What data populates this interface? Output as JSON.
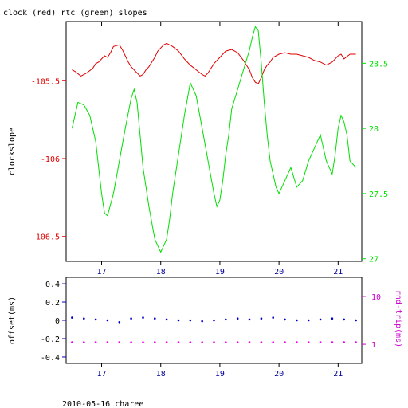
{
  "title": "clock (red) rtc (green) slopes",
  "footer": "2010-05-16 charee",
  "colors": {
    "clock": "#e00000",
    "rtc": "#00e000",
    "offset": "#0000cc",
    "rtrip": "#ee00ee",
    "axis": "#000000",
    "offset_ticks": "#0000cc",
    "rtrip_ticks": "#cc00cc"
  },
  "chart_data": [
    {
      "type": "line",
      "title": "clock (red) rtc (green) slopes",
      "xlabel": "",
      "ylabel": "clockslope",
      "y2label": "",
      "xlim": [
        16.4,
        21.4
      ],
      "ylim": [
        -106.66,
        -105.12
      ],
      "y2lim": [
        26.98,
        28.82
      ],
      "xticks": [
        17,
        18,
        19,
        20,
        21
      ],
      "yticks": [
        -105.5,
        -106,
        -106.5
      ],
      "y2ticks": [
        28.5,
        28,
        27.5,
        27
      ],
      "series": [
        {
          "name": "clock",
          "axis": "left",
          "x": [
            16.5,
            16.55,
            16.65,
            16.75,
            16.85,
            16.9,
            16.95,
            17.0,
            17.05,
            17.1,
            17.15,
            17.2,
            17.3,
            17.35,
            17.4,
            17.45,
            17.5,
            17.55,
            17.6,
            17.65,
            17.7,
            17.75,
            17.8,
            17.85,
            17.9,
            17.95,
            18.0,
            18.05,
            18.1,
            18.2,
            18.3,
            18.4,
            18.5,
            18.6,
            18.7,
            18.75,
            18.8,
            18.9,
            19.0,
            19.05,
            19.1,
            19.2,
            19.3,
            19.4,
            19.5,
            19.55,
            19.6,
            19.65,
            19.7,
            19.75,
            19.8,
            19.85,
            19.9,
            20.0,
            20.1,
            20.2,
            20.3,
            20.4,
            20.5,
            20.6,
            20.7,
            20.8,
            20.9,
            21.0,
            21.05,
            21.1,
            21.2,
            21.3
          ],
          "y": [
            -105.43,
            -105.44,
            -105.47,
            -105.45,
            -105.42,
            -105.39,
            -105.38,
            -105.36,
            -105.34,
            -105.35,
            -105.32,
            -105.28,
            -105.27,
            -105.3,
            -105.34,
            -105.38,
            -105.41,
            -105.43,
            -105.45,
            -105.47,
            -105.46,
            -105.43,
            -105.41,
            -105.38,
            -105.35,
            -105.31,
            -105.29,
            -105.27,
            -105.26,
            -105.28,
            -105.31,
            -105.36,
            -105.4,
            -105.43,
            -105.46,
            -105.47,
            -105.45,
            -105.39,
            -105.35,
            -105.33,
            -105.31,
            -105.3,
            -105.32,
            -105.37,
            -105.43,
            -105.48,
            -105.51,
            -105.52,
            -105.48,
            -105.43,
            -105.4,
            -105.38,
            -105.35,
            -105.33,
            -105.32,
            -105.33,
            -105.33,
            -105.34,
            -105.35,
            -105.37,
            -105.38,
            -105.4,
            -105.38,
            -105.34,
            -105.33,
            -105.36,
            -105.33,
            -105.33
          ]
        },
        {
          "name": "rtc",
          "axis": "right",
          "x": [
            16.5,
            16.55,
            16.6,
            16.7,
            16.8,
            16.9,
            16.95,
            17.0,
            17.05,
            17.1,
            17.2,
            17.3,
            17.4,
            17.5,
            17.55,
            17.6,
            17.65,
            17.7,
            17.8,
            17.9,
            17.95,
            18.0,
            18.05,
            18.1,
            18.15,
            18.2,
            18.3,
            18.4,
            18.5,
            18.6,
            18.7,
            18.8,
            18.9,
            18.95,
            19.0,
            19.05,
            19.1,
            19.15,
            19.2,
            19.3,
            19.4,
            19.5,
            19.55,
            19.6,
            19.65,
            19.7,
            19.75,
            19.8,
            19.85,
            19.9,
            19.95,
            20.0,
            20.05,
            20.1,
            20.2,
            20.3,
            20.4,
            20.5,
            20.6,
            20.7,
            20.8,
            20.9,
            20.95,
            21.0,
            21.05,
            21.1,
            21.15,
            21.2,
            21.3
          ],
          "y": [
            28.0,
            28.1,
            28.2,
            28.18,
            28.1,
            27.9,
            27.7,
            27.5,
            27.35,
            27.33,
            27.5,
            27.75,
            28.0,
            28.23,
            28.3,
            28.2,
            27.95,
            27.7,
            27.4,
            27.15,
            27.1,
            27.05,
            27.1,
            27.15,
            27.3,
            27.5,
            27.8,
            28.1,
            28.35,
            28.25,
            28.0,
            27.75,
            27.5,
            27.4,
            27.45,
            27.6,
            27.8,
            27.95,
            28.15,
            28.3,
            28.45,
            28.6,
            28.7,
            28.78,
            28.75,
            28.5,
            28.2,
            27.95,
            27.75,
            27.65,
            27.55,
            27.5,
            27.55,
            27.6,
            27.7,
            27.55,
            27.6,
            27.75,
            27.85,
            27.95,
            27.75,
            27.65,
            27.8,
            28.0,
            28.1,
            28.05,
            27.95,
            27.75,
            27.7
          ]
        }
      ]
    },
    {
      "type": "scatter",
      "xlabel": "",
      "ylabel": "offset(ms)",
      "y2label": "rnd-trip(ms)",
      "xlim": [
        16.4,
        21.4
      ],
      "ylim": [
        -0.47,
        0.47
      ],
      "y2scale": "log",
      "y2lim": [
        0.4,
        25
      ],
      "xticks": [
        17,
        18,
        19,
        20,
        21
      ],
      "yticks": [
        0.4,
        0.2,
        0,
        -0.2,
        -0.4
      ],
      "y2ticks": [
        10,
        1
      ],
      "series": [
        {
          "name": "offset",
          "axis": "left",
          "x": [
            16.5,
            16.7,
            16.9,
            17.1,
            17.3,
            17.5,
            17.7,
            17.9,
            18.1,
            18.3,
            18.5,
            18.7,
            18.9,
            19.1,
            19.3,
            19.5,
            19.7,
            19.9,
            20.1,
            20.3,
            20.5,
            20.7,
            20.9,
            21.1,
            21.3
          ],
          "y": [
            0.03,
            0.02,
            0.01,
            0.0,
            -0.02,
            0.02,
            0.03,
            0.02,
            0.01,
            0.0,
            0.0,
            -0.01,
            0.0,
            0.01,
            0.02,
            0.01,
            0.02,
            0.03,
            0.01,
            0.0,
            0.0,
            0.01,
            0.02,
            0.01,
            0.0
          ]
        },
        {
          "name": "rnd-trip",
          "axis": "right",
          "x": [
            16.5,
            16.7,
            16.9,
            17.1,
            17.3,
            17.5,
            17.7,
            17.9,
            18.1,
            18.3,
            18.5,
            18.7,
            18.9,
            19.1,
            19.3,
            19.5,
            19.7,
            19.9,
            20.1,
            20.3,
            20.5,
            20.7,
            20.9,
            21.1,
            21.3
          ],
          "y": [
            1.1,
            1.1,
            1.1,
            1.1,
            1.1,
            1.1,
            1.1,
            1.1,
            1.1,
            1.1,
            1.1,
            1.1,
            1.1,
            1.1,
            1.1,
            1.1,
            1.1,
            1.1,
            1.1,
            1.1,
            1.1,
            1.1,
            1.1,
            1.1,
            1.1
          ]
        }
      ]
    }
  ]
}
